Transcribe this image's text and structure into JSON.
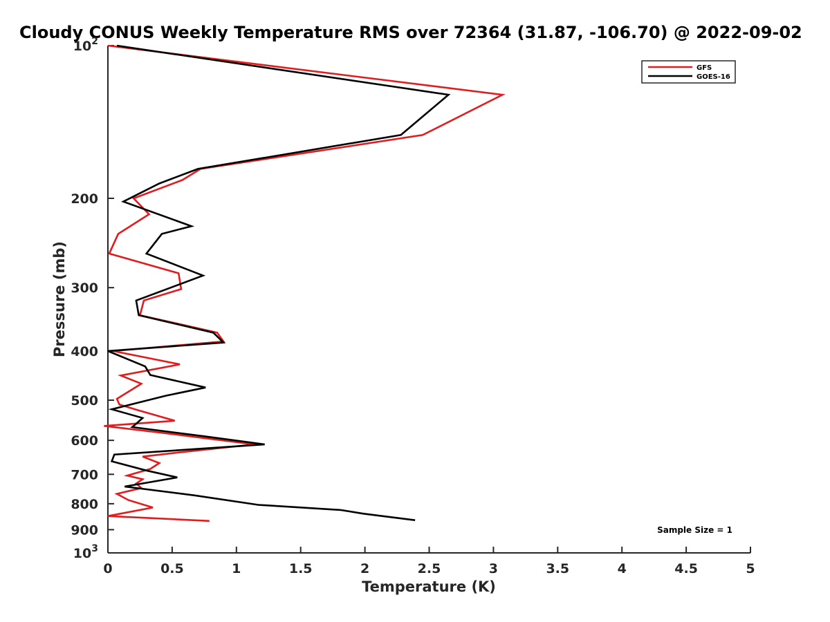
{
  "chart_data": {
    "type": "line",
    "title": "Cloudy CONUS Weekly Temperature RMS over 72364 (31.87, -106.70) @ 2022-09-02",
    "xlabel": "Temperature (K)",
    "ylabel": "Pressure (mb)",
    "xlim": [
      0,
      5
    ],
    "ylim": [
      100,
      1000
    ],
    "y_scale": "log",
    "y_reversed": true,
    "grid": false,
    "legend_position": "top-right",
    "x_ticks": [
      "0",
      "0.5",
      "1",
      "1.5",
      "2",
      "2.5",
      "3",
      "3.5",
      "4",
      "4.5",
      "5"
    ],
    "y_ticks": [
      {
        "value": 100,
        "label": "10",
        "exp": "2"
      },
      {
        "value": 200,
        "label": "200"
      },
      {
        "value": 300,
        "label": "300"
      },
      {
        "value": 400,
        "label": "400"
      },
      {
        "value": 500,
        "label": "500"
      },
      {
        "value": 600,
        "label": "600"
      },
      {
        "value": 700,
        "label": "700"
      },
      {
        "value": 800,
        "label": "800"
      },
      {
        "value": 900,
        "label": "900"
      },
      {
        "value": 1000,
        "label": "10",
        "exp": "3"
      }
    ],
    "annotation": "Sample Size = 1",
    "series": [
      {
        "name": "GFS",
        "color": "#e41a1c",
        "points": [
          [
            0.0,
            100
          ],
          [
            3.07,
            125
          ],
          [
            2.45,
            150
          ],
          [
            0.72,
            175
          ],
          [
            0.58,
            184
          ],
          [
            0.2,
            200
          ],
          [
            0.32,
            215
          ],
          [
            0.08,
            235
          ],
          [
            0.01,
            257
          ],
          [
            0.55,
            281
          ],
          [
            0.57,
            302
          ],
          [
            0.28,
            318
          ],
          [
            0.25,
            340
          ],
          [
            0.85,
            368
          ],
          [
            0.9,
            383
          ],
          [
            0.04,
            400
          ],
          [
            0.56,
            425
          ],
          [
            0.1,
            447
          ],
          [
            0.26,
            464
          ],
          [
            0.07,
            497
          ],
          [
            0.09,
            510
          ],
          [
            0.22,
            522
          ],
          [
            0.52,
            549
          ],
          [
            -0.03,
            562
          ],
          [
            0.38,
            578
          ],
          [
            1.14,
            611
          ],
          [
            0.55,
            634
          ],
          [
            0.27,
            646
          ],
          [
            0.4,
            665
          ],
          [
            0.33,
            683
          ],
          [
            0.15,
            704
          ],
          [
            0.27,
            716
          ],
          [
            0.22,
            730
          ],
          [
            0.26,
            745
          ],
          [
            0.07,
            765
          ],
          [
            0.16,
            787
          ],
          [
            0.35,
            814
          ],
          [
            0.0,
            846
          ],
          [
            0.79,
            865
          ]
        ]
      },
      {
        "name": "GOES-16",
        "color": "#000000",
        "points": [
          [
            0.07,
            100
          ],
          [
            2.65,
            125
          ],
          [
            2.28,
            150
          ],
          [
            0.7,
            175
          ],
          [
            0.4,
            187
          ],
          [
            0.12,
            203
          ],
          [
            0.65,
            227
          ],
          [
            0.42,
            235
          ],
          [
            0.3,
            257
          ],
          [
            0.74,
            284
          ],
          [
            0.22,
            318
          ],
          [
            0.24,
            340
          ],
          [
            0.82,
            368
          ],
          [
            0.9,
            385
          ],
          [
            0.0,
            400
          ],
          [
            0.29,
            429
          ],
          [
            0.33,
            446
          ],
          [
            0.76,
            472
          ],
          [
            0.45,
            490
          ],
          [
            0.03,
            521
          ],
          [
            0.27,
            542
          ],
          [
            0.19,
            565
          ],
          [
            0.75,
            589
          ],
          [
            1.22,
            611
          ],
          [
            0.05,
            640
          ],
          [
            0.03,
            660
          ],
          [
            0.3,
            688
          ],
          [
            0.54,
            710
          ],
          [
            0.13,
            740
          ],
          [
            0.67,
            770
          ],
          [
            1.17,
            804
          ],
          [
            1.81,
            823
          ],
          [
            1.99,
            837
          ],
          [
            2.39,
            862
          ]
        ]
      }
    ]
  }
}
